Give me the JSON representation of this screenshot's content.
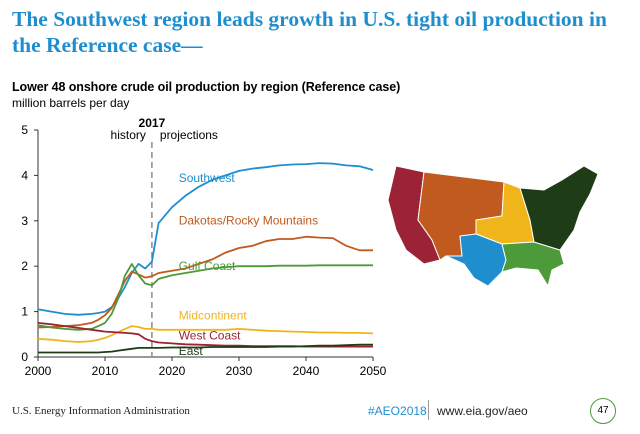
{
  "headline": "The Southwest region leads growth in U.S. tight oil production in the Reference case—",
  "footer": {
    "org": "U.S. Energy Information Administration",
    "hashtag": "#AEO2018",
    "url": "www.eia.gov/aeo",
    "page": "47"
  },
  "map": {
    "regions": [
      "West Coast",
      "Dakotas/Rocky Mountains",
      "Southwest",
      "Midcontinent",
      "Gulf Coast",
      "East"
    ]
  },
  "chart_data": {
    "type": "line",
    "title": "Lower 48 onshore crude oil production by region (Reference case)",
    "ylabel": "million barrels per day",
    "xlim": [
      2000,
      2050
    ],
    "ylim": [
      0,
      5
    ],
    "x_ticks": [
      2000,
      2010,
      2020,
      2030,
      2040,
      2050
    ],
    "y_ticks": [
      0,
      1,
      2,
      3,
      4,
      5
    ],
    "grid": false,
    "divider": {
      "x": 2017,
      "label": "2017",
      "left_label": "history",
      "right_label": "projections"
    },
    "x": [
      2000,
      2002,
      2004,
      2006,
      2008,
      2009,
      2010,
      2011,
      2012,
      2013,
      2014,
      2015,
      2016,
      2017,
      2018,
      2020,
      2022,
      2024,
      2026,
      2028,
      2030,
      2032,
      2034,
      2036,
      2038,
      2040,
      2042,
      2044,
      2046,
      2048,
      2050
    ],
    "series": [
      {
        "name": "Southwest",
        "color": "#1f8ecf",
        "label_x": 2021,
        "label_y": 3.85,
        "values": [
          1.05,
          1.0,
          0.95,
          0.93,
          0.95,
          0.97,
          1.0,
          1.1,
          1.3,
          1.55,
          1.85,
          2.05,
          1.95,
          2.1,
          2.95,
          3.3,
          3.55,
          3.75,
          3.9,
          4.0,
          4.1,
          4.15,
          4.18,
          4.22,
          4.24,
          4.25,
          4.27,
          4.26,
          4.22,
          4.2,
          4.12
        ]
      },
      {
        "name": "Dakotas/Rocky Mountains",
        "color": "#c05a1f",
        "label_x": 2021,
        "label_y": 2.92,
        "values": [
          0.65,
          0.66,
          0.68,
          0.7,
          0.75,
          0.82,
          0.92,
          1.08,
          1.38,
          1.68,
          1.88,
          1.82,
          1.75,
          1.78,
          1.85,
          1.9,
          1.95,
          2.05,
          2.15,
          2.3,
          2.4,
          2.45,
          2.55,
          2.6,
          2.6,
          2.65,
          2.63,
          2.62,
          2.45,
          2.35,
          2.35
        ]
      },
      {
        "name": "Gulf Coast",
        "color": "#4c9a3a",
        "label_x": 2021,
        "label_y": 1.92,
        "values": [
          0.7,
          0.65,
          0.62,
          0.6,
          0.62,
          0.68,
          0.75,
          0.95,
          1.3,
          1.8,
          2.05,
          1.8,
          1.62,
          1.58,
          1.72,
          1.8,
          1.85,
          1.9,
          1.95,
          1.98,
          2.0,
          2.0,
          2.0,
          2.01,
          2.01,
          2.01,
          2.02,
          2.02,
          2.02,
          2.02,
          2.02
        ]
      },
      {
        "name": "Midcontinent",
        "color": "#f1b51c",
        "label_x": 2021,
        "label_y": 0.83,
        "values": [
          0.4,
          0.38,
          0.35,
          0.33,
          0.35,
          0.38,
          0.42,
          0.48,
          0.55,
          0.62,
          0.68,
          0.66,
          0.62,
          0.62,
          0.6,
          0.6,
          0.6,
          0.6,
          0.6,
          0.6,
          0.62,
          0.6,
          0.58,
          0.57,
          0.56,
          0.55,
          0.54,
          0.54,
          0.53,
          0.53,
          0.52
        ]
      },
      {
        "name": "West Coast",
        "color": "#9b2335",
        "label_x": 2021,
        "label_y": 0.38,
        "values": [
          0.75,
          0.72,
          0.68,
          0.64,
          0.6,
          0.58,
          0.56,
          0.55,
          0.54,
          0.53,
          0.52,
          0.5,
          0.4,
          0.35,
          0.32,
          0.3,
          0.28,
          0.27,
          0.26,
          0.25,
          0.25,
          0.24,
          0.24,
          0.24,
          0.24,
          0.23,
          0.23,
          0.23,
          0.23,
          0.23,
          0.23
        ]
      },
      {
        "name": "East",
        "color": "#1e3d16",
        "label_x": 2021,
        "label_y": 0.04,
        "values": [
          0.1,
          0.1,
          0.1,
          0.1,
          0.1,
          0.1,
          0.11,
          0.12,
          0.14,
          0.16,
          0.18,
          0.2,
          0.2,
          0.2,
          0.2,
          0.21,
          0.21,
          0.21,
          0.22,
          0.22,
          0.22,
          0.22,
          0.22,
          0.23,
          0.23,
          0.24,
          0.25,
          0.25,
          0.26,
          0.27,
          0.27
        ]
      }
    ]
  }
}
